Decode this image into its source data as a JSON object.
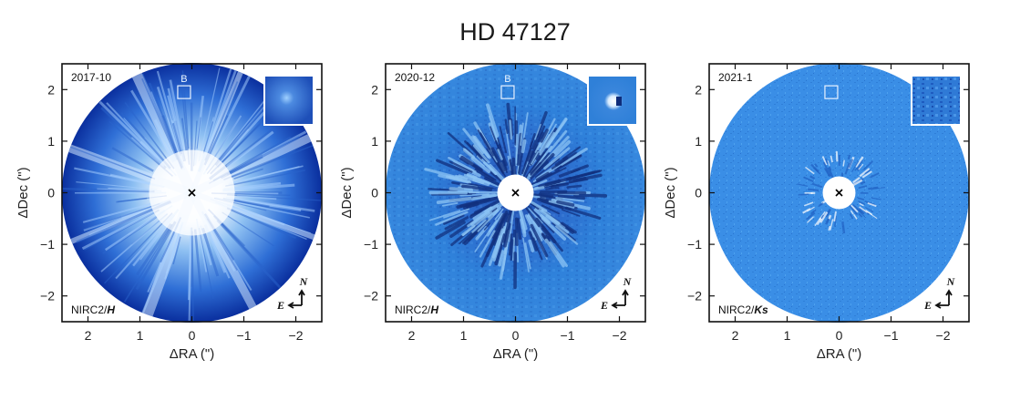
{
  "title": "HD 47127",
  "axes": {
    "xlabel": "ΔRA (\")",
    "ylabel": "ΔDec (\")",
    "xticks": [
      {
        "value": 2,
        "label": "2"
      },
      {
        "value": 1,
        "label": "1"
      },
      {
        "value": 0,
        "label": "0"
      },
      {
        "value": -1,
        "label": "−1"
      },
      {
        "value": -2,
        "label": "−2"
      }
    ],
    "yticks": [
      {
        "value": 2,
        "label": "2"
      },
      {
        "value": 1,
        "label": "1"
      },
      {
        "value": 0,
        "label": "0"
      },
      {
        "value": -1,
        "label": "−1"
      },
      {
        "value": -2,
        "label": "−2"
      }
    ],
    "xlim": [
      2.5,
      -2.5
    ],
    "ylim": [
      -2.5,
      2.5
    ]
  },
  "compass": {
    "north": "N",
    "east": "E"
  },
  "companion_marker": "B",
  "colors": {
    "panel1_core": "#ffffff",
    "panel1_mid": "#5b9fe6",
    "panel1_edge": "#0a2f9e",
    "panel2_disk": "#2f86dd",
    "panel3_disk": "#3b95e8"
  },
  "panels": [
    {
      "epoch": "2017-10",
      "instrument": "NIRC2/",
      "band": "H",
      "companion_label": "B"
    },
    {
      "epoch": "2020-12",
      "instrument": "NIRC2/",
      "band": "H",
      "companion_label": "B"
    },
    {
      "epoch": "2021-1",
      "instrument": "NIRC2/",
      "band": "Ks",
      "companion_label": ""
    }
  ]
}
